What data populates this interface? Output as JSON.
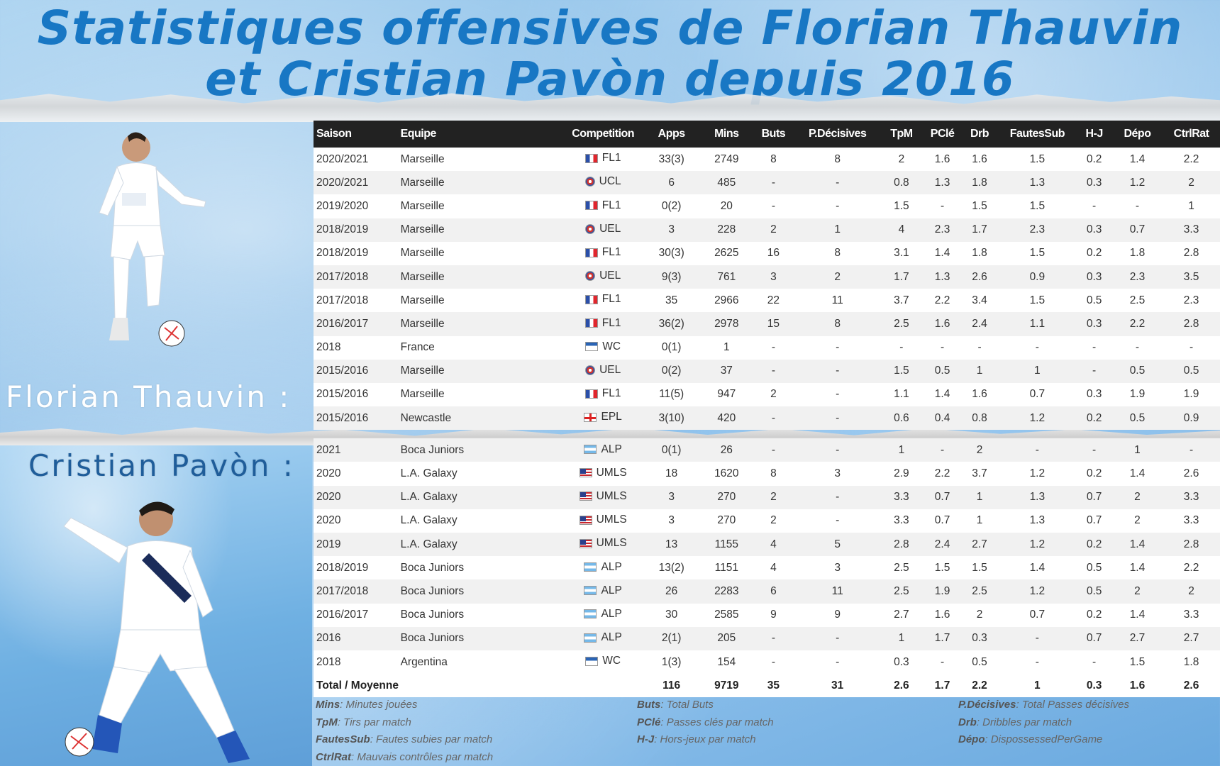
{
  "title": {
    "line1": "Statistiques offensives de Florian Thauvin",
    "line2": "et Cristian Pavòn depuis 2016"
  },
  "players": {
    "thauvin_label": "Florian Thauvin :",
    "pavon_label": "Cristian Pavòn :"
  },
  "table": {
    "headers": [
      "Saison",
      "Equipe",
      "Competition",
      "Apps",
      "Mins",
      "Buts",
      "P.Décisives",
      "TpM",
      "PClé",
      "Drb",
      "FautesSub",
      "H-J",
      "Dépo",
      "CtrlRat"
    ],
    "thauvin_rows": [
      {
        "saison": "2020/2021",
        "equipe": "Marseille",
        "flag": "fr",
        "comp": "FL1",
        "apps": "33(3)",
        "mins": "2749",
        "buts": "8",
        "pd": "8",
        "tpm": "2",
        "pcle": "1.6",
        "drb": "1.6",
        "fs": "1.5",
        "hj": "0.2",
        "depo": "1.4",
        "cr": "2.2"
      },
      {
        "saison": "2020/2021",
        "equipe": "Marseille",
        "flag": "eu",
        "comp": "UCL",
        "apps": "6",
        "mins": "485",
        "buts": "-",
        "pd": "-",
        "tpm": "0.8",
        "pcle": "1.3",
        "drb": "1.8",
        "fs": "1.3",
        "hj": "0.3",
        "depo": "1.2",
        "cr": "2"
      },
      {
        "saison": "2019/2020",
        "equipe": "Marseille",
        "flag": "fr",
        "comp": "FL1",
        "apps": "0(2)",
        "mins": "20",
        "buts": "-",
        "pd": "-",
        "tpm": "1.5",
        "pcle": "-",
        "drb": "1.5",
        "fs": "1.5",
        "hj": "-",
        "depo": "-",
        "cr": "1"
      },
      {
        "saison": "2018/2019",
        "equipe": "Marseille",
        "flag": "eu",
        "comp": "UEL",
        "apps": "3",
        "mins": "228",
        "buts": "2",
        "pd": "1",
        "tpm": "4",
        "pcle": "2.3",
        "drb": "1.7",
        "fs": "2.3",
        "hj": "0.3",
        "depo": "0.7",
        "cr": "3.3"
      },
      {
        "saison": "2018/2019",
        "equipe": "Marseille",
        "flag": "fr",
        "comp": "FL1",
        "apps": "30(3)",
        "mins": "2625",
        "buts": "16",
        "pd": "8",
        "tpm": "3.1",
        "pcle": "1.4",
        "drb": "1.8",
        "fs": "1.5",
        "hj": "0.2",
        "depo": "1.8",
        "cr": "2.8"
      },
      {
        "saison": "2017/2018",
        "equipe": "Marseille",
        "flag": "eu",
        "comp": "UEL",
        "apps": "9(3)",
        "mins": "761",
        "buts": "3",
        "pd": "2",
        "tpm": "1.7",
        "pcle": "1.3",
        "drb": "2.6",
        "fs": "0.9",
        "hj": "0.3",
        "depo": "2.3",
        "cr": "3.5"
      },
      {
        "saison": "2017/2018",
        "equipe": "Marseille",
        "flag": "fr",
        "comp": "FL1",
        "apps": "35",
        "mins": "2966",
        "buts": "22",
        "pd": "11",
        "tpm": "3.7",
        "pcle": "2.2",
        "drb": "3.4",
        "fs": "1.5",
        "hj": "0.5",
        "depo": "2.5",
        "cr": "2.3"
      },
      {
        "saison": "2016/2017",
        "equipe": "Marseille",
        "flag": "fr",
        "comp": "FL1",
        "apps": "36(2)",
        "mins": "2978",
        "buts": "15",
        "pd": "8",
        "tpm": "2.5",
        "pcle": "1.6",
        "drb": "2.4",
        "fs": "1.1",
        "hj": "0.3",
        "depo": "2.2",
        "cr": "2.8"
      },
      {
        "saison": "2018",
        "equipe": "France",
        "flag": "fifa",
        "comp": "WC",
        "apps": "0(1)",
        "mins": "1",
        "buts": "-",
        "pd": "-",
        "tpm": "-",
        "pcle": "-",
        "drb": "-",
        "fs": "-",
        "hj": "-",
        "depo": "-",
        "cr": "-"
      },
      {
        "saison": "2015/2016",
        "equipe": "Marseille",
        "flag": "eu",
        "comp": "UEL",
        "apps": "0(2)",
        "mins": "37",
        "buts": "-",
        "pd": "-",
        "tpm": "1.5",
        "pcle": "0.5",
        "drb": "1",
        "fs": "1",
        "hj": "-",
        "depo": "0.5",
        "cr": "0.5"
      },
      {
        "saison": "2015/2016",
        "equipe": "Marseille",
        "flag": "fr",
        "comp": "FL1",
        "apps": "11(5)",
        "mins": "947",
        "buts": "2",
        "pd": "-",
        "tpm": "1.1",
        "pcle": "1.4",
        "drb": "1.6",
        "fs": "0.7",
        "hj": "0.3",
        "depo": "1.9",
        "cr": "1.9"
      },
      {
        "saison": "2015/2016",
        "equipe": "Newcastle",
        "flag": "en",
        "comp": "EPL",
        "apps": "3(10)",
        "mins": "420",
        "buts": "-",
        "pd": "-",
        "tpm": "0.6",
        "pcle": "0.4",
        "drb": "0.8",
        "fs": "1.2",
        "hj": "0.2",
        "depo": "0.5",
        "cr": "0.9"
      }
    ],
    "pavon_rows": [
      {
        "saison": "2021",
        "equipe": "Boca Juniors",
        "flag": "ar",
        "comp": "ALP",
        "apps": "0(1)",
        "mins": "26",
        "buts": "-",
        "pd": "-",
        "tpm": "1",
        "pcle": "-",
        "drb": "2",
        "fs": "-",
        "hj": "-",
        "depo": "1",
        "cr": "-"
      },
      {
        "saison": "2020",
        "equipe": "L.A. Galaxy",
        "flag": "us",
        "comp": "UMLS",
        "apps": "18",
        "mins": "1620",
        "buts": "8",
        "pd": "3",
        "tpm": "2.9",
        "pcle": "2.2",
        "drb": "3.7",
        "fs": "1.2",
        "hj": "0.2",
        "depo": "1.4",
        "cr": "2.6"
      },
      {
        "saison": "2020",
        "equipe": "L.A. Galaxy",
        "flag": "us",
        "comp": "UMLS",
        "apps": "3",
        "mins": "270",
        "buts": "2",
        "pd": "-",
        "tpm": "3.3",
        "pcle": "0.7",
        "drb": "1",
        "fs": "1.3",
        "hj": "0.7",
        "depo": "2",
        "cr": "3.3"
      },
      {
        "saison": "2020",
        "equipe": "L.A. Galaxy",
        "flag": "us",
        "comp": "UMLS",
        "apps": "3",
        "mins": "270",
        "buts": "2",
        "pd": "-",
        "tpm": "3.3",
        "pcle": "0.7",
        "drb": "1",
        "fs": "1.3",
        "hj": "0.7",
        "depo": "2",
        "cr": "3.3"
      },
      {
        "saison": "2019",
        "equipe": "L.A. Galaxy",
        "flag": "us",
        "comp": "UMLS",
        "apps": "13",
        "mins": "1155",
        "buts": "4",
        "pd": "5",
        "tpm": "2.8",
        "pcle": "2.4",
        "drb": "2.7",
        "fs": "1.2",
        "hj": "0.2",
        "depo": "1.4",
        "cr": "2.8"
      },
      {
        "saison": "2018/2019",
        "equipe": "Boca Juniors",
        "flag": "ar",
        "comp": "ALP",
        "apps": "13(2)",
        "mins": "1151",
        "buts": "4",
        "pd": "3",
        "tpm": "2.5",
        "pcle": "1.5",
        "drb": "1.5",
        "fs": "1.4",
        "hj": "0.5",
        "depo": "1.4",
        "cr": "2.2"
      },
      {
        "saison": "2017/2018",
        "equipe": "Boca Juniors",
        "flag": "ar",
        "comp": "ALP",
        "apps": "26",
        "mins": "2283",
        "buts": "6",
        "pd": "11",
        "tpm": "2.5",
        "pcle": "1.9",
        "drb": "2.5",
        "fs": "1.2",
        "hj": "0.5",
        "depo": "2",
        "cr": "2"
      },
      {
        "saison": "2016/2017",
        "equipe": "Boca Juniors",
        "flag": "ar",
        "comp": "ALP",
        "apps": "30",
        "mins": "2585",
        "buts": "9",
        "pd": "9",
        "tpm": "2.7",
        "pcle": "1.6",
        "drb": "2",
        "fs": "0.7",
        "hj": "0.2",
        "depo": "1.4",
        "cr": "3.3"
      },
      {
        "saison": "2016",
        "equipe": "Boca Juniors",
        "flag": "ar",
        "comp": "ALP",
        "apps": "2(1)",
        "mins": "205",
        "buts": "-",
        "pd": "-",
        "tpm": "1",
        "pcle": "1.7",
        "drb": "0.3",
        "fs": "-",
        "hj": "0.7",
        "depo": "2.7",
        "cr": "2.7"
      },
      {
        "saison": "2018",
        "equipe": "Argentina",
        "flag": "fifa",
        "comp": "WC",
        "apps": "1(3)",
        "mins": "154",
        "buts": "-",
        "pd": "-",
        "tpm": "0.3",
        "pcle": "-",
        "drb": "0.5",
        "fs": "-",
        "hj": "-",
        "depo": "1.5",
        "cr": "1.8"
      }
    ],
    "total": {
      "label": "Total / Moyenne",
      "apps": "116",
      "mins": "9719",
      "buts": "35",
      "pd": "31",
      "tpm": "2.6",
      "pcle": "1.7",
      "drb": "2.2",
      "fs": "1",
      "hj": "0.3",
      "depo": "1.6",
      "cr": "2.6"
    }
  },
  "legend": [
    {
      "key": "Mins",
      "desc": ": Minutes jouées"
    },
    {
      "key": "TpM",
      "desc": ": Tirs par match"
    },
    {
      "key": "FautesSub",
      "desc": ": Fautes subies par match"
    },
    {
      "key": "CtrlRat",
      "desc": ": Mauvais contrôles par match"
    },
    {
      "key": "Buts",
      "desc": ": Total Buts"
    },
    {
      "key": "PClé",
      "desc": ": Passes clés par match"
    },
    {
      "key": "H-J",
      "desc": ": Hors-jeux par match"
    },
    {
      "key": "P.Décisives",
      "desc": ": Total Passes décisives"
    },
    {
      "key": "Drb",
      "desc": ": Dribbles par match"
    },
    {
      "key": "Dépo",
      "desc": ": DispossessedPerGame"
    }
  ],
  "colors": {
    "title": "#1877c4",
    "header_bg": "#222222",
    "row_alt": "#f1f1f1"
  }
}
